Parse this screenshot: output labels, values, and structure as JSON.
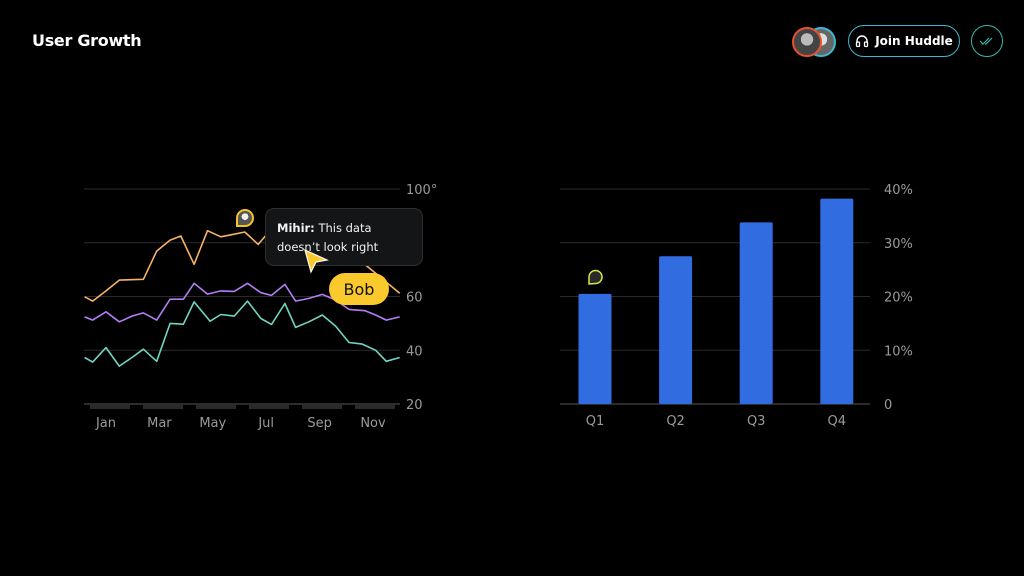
{
  "header": {
    "title": "User Growth",
    "join_label": "Join Huddle",
    "avatars": [
      "user-avatar-1",
      "user-avatar-2"
    ]
  },
  "comment": {
    "author": "Mihir:",
    "text": "This data doesn’t look right",
    "cursor_label": "Bob"
  },
  "colors": {
    "orange": "#f7b267",
    "purple": "#b47ef2",
    "teal": "#6fd6c2",
    "bar": "#316de0",
    "accent": "#3bb8d6",
    "bob": "#fac92c"
  },
  "chart_data": [
    {
      "type": "line",
      "x_tick_labels": [
        "Jan",
        "Mar",
        "May",
        "Jul",
        "Sep",
        "Nov"
      ],
      "y_tick_labels": [
        "100°",
        "60",
        "40",
        "20"
      ],
      "ylim": [
        20,
        100
      ],
      "grid": true,
      "series": [
        {
          "color": "#f7b267",
          "x": [
            0.2,
            0.5,
            1.0,
            1.5,
            2.4,
            2.9,
            3.4,
            3.8,
            4.3,
            4.8,
            5.3,
            5.8,
            6.2,
            6.7,
            7.0,
            7.5,
            8.0,
            8.5,
            9.0,
            9.5,
            10.0,
            10.4,
            10.8,
            12.0
          ],
          "y": [
            59.9,
            58.3,
            62.1,
            66.1,
            66.4,
            76.9,
            81,
            82.5,
            72,
            84.5,
            82.2,
            83.2,
            84,
            79.4,
            82.9,
            84,
            82,
            80,
            81,
            78,
            76,
            74,
            71.1,
            61.2
          ]
        },
        {
          "color": "#b47ef2",
          "x": [
            0.2,
            0.5,
            1.0,
            1.5,
            2.0,
            2.4,
            2.9,
            3.4,
            3.9,
            4.3,
            4.8,
            5.3,
            5.8,
            6.3,
            6.8,
            7.2,
            7.7,
            8.1,
            8.6,
            9.1,
            9.6,
            10.1,
            10.7,
            11.1,
            11.5,
            12.0
          ],
          "y": [
            52.4,
            51.2,
            54.3,
            50.6,
            52.8,
            53.9,
            51.2,
            59,
            59,
            64.9,
            60.9,
            62.1,
            61.9,
            64.9,
            61.4,
            60.4,
            64.5,
            58.3,
            59.3,
            60.8,
            58.7,
            55.2,
            54.7,
            53.1,
            51.2,
            52.4
          ]
        },
        {
          "color": "#6fd6c2",
          "x": [
            0.2,
            0.5,
            1.0,
            1.5,
            2.0,
            2.4,
            2.9,
            3.4,
            3.9,
            4.3,
            4.9,
            5.3,
            5.8,
            6.3,
            6.8,
            7.2,
            7.7,
            8.1,
            8.6,
            9.1,
            9.6,
            10.1,
            10.6,
            11.1,
            11.5,
            12.0
          ],
          "y": [
            37.3,
            35.6,
            41,
            34.1,
            37.5,
            40.4,
            35.9,
            50,
            49.7,
            58,
            50.8,
            53.3,
            52.7,
            58.3,
            51.8,
            49.6,
            57.4,
            48.5,
            50.6,
            53.1,
            49,
            42.9,
            42.3,
            40,
            35.9,
            37.3
          ]
        }
      ]
    },
    {
      "type": "bar",
      "categories": [
        "Q1",
        "Q2",
        "Q3",
        "Q4"
      ],
      "values": [
        20.5,
        27.5,
        33.8,
        38.2
      ],
      "y_tick_labels": [
        "40%",
        "30%",
        "20%",
        "10%",
        "0"
      ],
      "ylim": [
        0,
        40
      ],
      "grid": true,
      "color": "#316de0"
    }
  ]
}
